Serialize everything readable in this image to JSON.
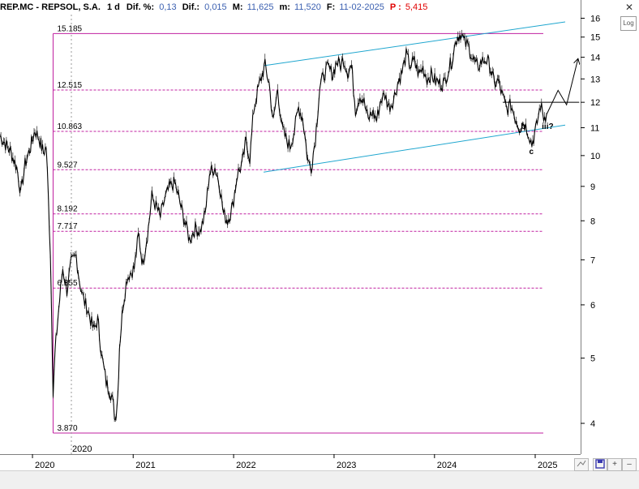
{
  "header": {
    "ticker": "REP.MC - REPSOL, S.A.",
    "period": "1 d",
    "diff_pct_label": "Dif. %:",
    "diff_pct": "0,13",
    "diff_label": "Dif.:",
    "diff": "0,015",
    "high_label": "M:",
    "high": "11,625",
    "low_label": "m:",
    "low": "11,520",
    "date_label": "F:",
    "date": "11-02-2025",
    "pl_label": "P :",
    "pl": "5,415"
  },
  "controls": {
    "log_label": "Log",
    "close": "✕",
    "minimize": "–",
    "toggle": "+"
  },
  "colors": {
    "price": "#000000",
    "level": "#c020a0",
    "channel": "#1fa6cf",
    "projection": "#000000",
    "background": "#ffffff"
  },
  "chart_data": {
    "type": "line",
    "title": "",
    "xlabel": "",
    "ylabel": "",
    "y_scale": "log",
    "ylim": [
      3.6,
      16.2
    ],
    "xlim": [
      "2019-09-05",
      "2025-06-15"
    ],
    "y_ticks": [
      4,
      5,
      6,
      7,
      8,
      9,
      10,
      11,
      12,
      13,
      14,
      15,
      16
    ],
    "x_ticks": [
      "2020",
      "2021",
      "2022",
      "2023",
      "2024",
      "2025"
    ],
    "crosshair_label": "2020",
    "series": [
      {
        "points": [
          [
            "2019-09-05",
            10.7
          ],
          [
            "2019-09-25",
            10.4
          ],
          [
            "2019-10-15",
            10.1
          ],
          [
            "2019-11-05",
            9.6
          ],
          [
            "2019-11-20",
            8.8
          ],
          [
            "2019-12-05",
            9.7
          ],
          [
            "2019-12-25",
            10.3
          ],
          [
            "2020-01-10",
            10.9
          ],
          [
            "2020-01-25",
            10.6
          ],
          [
            "2020-02-10",
            10.1
          ],
          [
            "2020-02-20",
            10.3
          ],
          [
            "2020-02-28",
            8.6
          ],
          [
            "2020-03-06",
            7.2
          ],
          [
            "2020-03-12",
            5.5
          ],
          [
            "2020-03-16",
            4.4
          ],
          [
            "2020-03-23",
            5.1
          ],
          [
            "2020-04-05",
            5.9
          ],
          [
            "2020-04-20",
            6.8
          ],
          [
            "2020-05-05",
            6.3
          ],
          [
            "2020-05-20",
            6.9
          ],
          [
            "2020-06-08",
            7.1
          ],
          [
            "2020-06-20",
            6.5
          ],
          [
            "2020-07-05",
            6.1
          ],
          [
            "2020-07-20",
            5.9
          ],
          [
            "2020-08-10",
            5.5
          ],
          [
            "2020-08-25",
            5.7
          ],
          [
            "2020-09-10",
            5.0
          ],
          [
            "2020-09-25",
            4.6
          ],
          [
            "2020-10-15",
            4.4
          ],
          [
            "2020-10-28",
            4.05
          ],
          [
            "2020-11-06",
            4.4
          ],
          [
            "2020-11-12",
            5.2
          ],
          [
            "2020-11-25",
            6.0
          ],
          [
            "2020-12-10",
            6.6
          ],
          [
            "2021-01-05",
            6.8
          ],
          [
            "2021-01-20",
            7.6
          ],
          [
            "2021-02-05",
            6.9
          ],
          [
            "2021-02-25",
            7.8
          ],
          [
            "2021-03-10",
            8.7
          ],
          [
            "2021-03-25",
            8.4
          ],
          [
            "2021-04-10",
            8.1
          ],
          [
            "2021-04-25",
            8.6
          ],
          [
            "2021-05-15",
            9.0
          ],
          [
            "2021-06-01",
            9.1
          ],
          [
            "2021-06-20",
            8.5
          ],
          [
            "2021-07-10",
            7.9
          ],
          [
            "2021-07-25",
            7.5
          ],
          [
            "2021-08-15",
            7.8
          ],
          [
            "2021-09-01",
            7.7
          ],
          [
            "2021-09-20",
            8.2
          ],
          [
            "2021-10-05",
            9.4
          ],
          [
            "2021-10-25",
            9.6
          ],
          [
            "2021-11-10",
            9.1
          ],
          [
            "2021-11-25",
            8.2
          ],
          [
            "2021-12-10",
            8.0
          ],
          [
            "2021-12-28",
            8.4
          ],
          [
            "2022-01-15",
            9.4
          ],
          [
            "2022-02-01",
            9.7
          ],
          [
            "2022-02-15",
            10.5
          ],
          [
            "2022-03-01",
            9.9
          ],
          [
            "2022-03-15",
            11.7
          ],
          [
            "2022-04-01",
            12.6
          ],
          [
            "2022-04-15",
            13.2
          ],
          [
            "2022-04-25",
            13.6
          ],
          [
            "2022-05-10",
            12.8
          ],
          [
            "2022-05-25",
            11.2
          ],
          [
            "2022-06-10",
            12.6
          ],
          [
            "2022-06-25",
            11.0
          ],
          [
            "2022-07-10",
            10.6
          ],
          [
            "2022-07-25",
            10.3
          ],
          [
            "2022-08-10",
            10.9
          ],
          [
            "2022-08-25",
            11.8
          ],
          [
            "2022-09-10",
            11.3
          ],
          [
            "2022-09-28",
            9.8
          ],
          [
            "2022-10-10",
            9.6
          ],
          [
            "2022-10-25",
            10.6
          ],
          [
            "2022-11-10",
            12.6
          ],
          [
            "2022-11-25",
            13.2
          ],
          [
            "2022-12-10",
            13.5
          ],
          [
            "2022-12-28",
            13.2
          ],
          [
            "2023-01-10",
            13.8
          ],
          [
            "2023-01-25",
            13.6
          ],
          [
            "2023-02-05",
            13.9
          ],
          [
            "2023-02-20",
            13.3
          ],
          [
            "2023-03-05",
            13.6
          ],
          [
            "2023-03-20",
            11.7
          ],
          [
            "2023-04-05",
            12.3
          ],
          [
            "2023-04-20",
            12.0
          ],
          [
            "2023-05-05",
            11.3
          ],
          [
            "2023-05-20",
            11.6
          ],
          [
            "2023-06-05",
            11.3
          ],
          [
            "2023-06-20",
            12.1
          ],
          [
            "2023-07-05",
            12.3
          ],
          [
            "2023-07-20",
            11.8
          ],
          [
            "2023-08-05",
            12.1
          ],
          [
            "2023-08-20",
            12.8
          ],
          [
            "2023-09-05",
            13.3
          ],
          [
            "2023-09-20",
            14.1
          ],
          [
            "2023-10-05",
            13.6
          ],
          [
            "2023-10-20",
            13.8
          ],
          [
            "2023-11-05",
            13.2
          ],
          [
            "2023-11-20",
            13.5
          ],
          [
            "2023-12-05",
            13.0
          ],
          [
            "2023-12-20",
            13.2
          ],
          [
            "2024-01-05",
            12.9
          ],
          [
            "2024-01-20",
            12.8
          ],
          [
            "2024-02-05",
            12.8
          ],
          [
            "2024-02-20",
            13.4
          ],
          [
            "2024-03-05",
            13.9
          ],
          [
            "2024-03-20",
            14.9
          ],
          [
            "2024-04-05",
            15.2
          ],
          [
            "2024-04-20",
            14.7
          ],
          [
            "2024-05-05",
            14.5
          ],
          [
            "2024-05-20",
            13.9
          ],
          [
            "2024-06-05",
            13.5
          ],
          [
            "2024-06-20",
            13.8
          ],
          [
            "2024-07-05",
            13.9
          ],
          [
            "2024-07-20",
            13.6
          ],
          [
            "2024-08-05",
            12.8
          ],
          [
            "2024-08-20",
            12.9
          ],
          [
            "2024-09-05",
            12.2
          ],
          [
            "2024-09-20",
            11.7
          ],
          [
            "2024-10-05",
            11.9
          ],
          [
            "2024-10-20",
            11.4
          ],
          [
            "2024-11-05",
            11.0
          ],
          [
            "2024-11-20",
            11.2
          ],
          [
            "2024-12-05",
            10.9
          ],
          [
            "2024-12-20",
            10.4
          ],
          [
            "2025-01-05",
            11.0
          ],
          [
            "2025-01-20",
            11.9
          ],
          [
            "2025-02-01",
            11.4
          ],
          [
            "2025-02-11",
            11.5
          ]
        ]
      }
    ],
    "horizontal_levels": [
      {
        "label": "15.185",
        "value": 15.185,
        "style": "solid"
      },
      {
        "label": "12.515",
        "value": 12.515,
        "style": "dashed"
      },
      {
        "label": "10.863",
        "value": 10.863,
        "style": "dashed"
      },
      {
        "label": "9.527",
        "value": 9.527,
        "style": "dashed"
      },
      {
        "label": "8.192",
        "value": 8.192,
        "style": "dashed"
      },
      {
        "label": "7.717",
        "value": 7.717,
        "style": "dashed"
      },
      {
        "label": "6.355",
        "value": 6.355,
        "style": "dashed"
      },
      {
        "label": "3.870",
        "value": 3.87,
        "style": "solid"
      }
    ],
    "level_bracket_start": "2020-03-16",
    "channel_lines": [
      {
        "from": [
          "2022-04-20",
          13.6
        ],
        "to": [
          "2025-04-20",
          15.8
        ]
      },
      {
        "from": [
          "2022-04-20",
          9.45
        ],
        "to": [
          "2025-04-20",
          11.1
        ]
      }
    ],
    "resistance_line": {
      "from": [
        "2024-09-05",
        12.0
      ],
      "to": [
        "2025-06-10",
        12.0
      ]
    },
    "projection_path": [
      [
        "2025-02-11",
        11.5
      ],
      [
        "2025-03-25",
        12.5
      ],
      [
        "2025-04-25",
        11.9
      ],
      [
        "2025-06-05",
        13.9
      ]
    ],
    "annotations": [
      {
        "text": "b",
        "x": "2024-11-10",
        "y": 10.95
      },
      {
        "text": "c",
        "x": "2024-12-10",
        "y": 10.05
      },
      {
        "text": "iii?",
        "x": "2025-01-25",
        "y": 10.95
      }
    ]
  }
}
